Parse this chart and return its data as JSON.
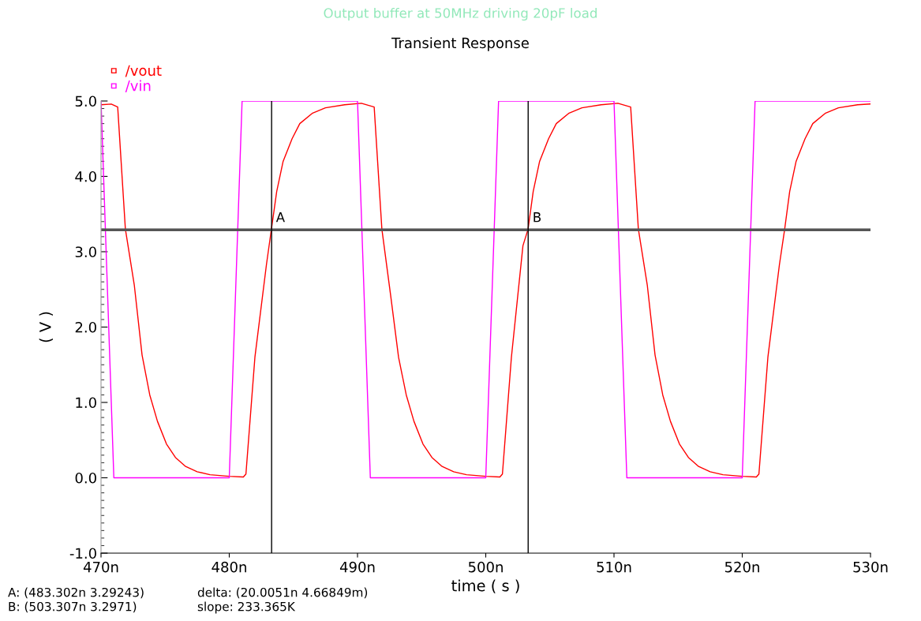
{
  "chart_data": {
    "type": "line",
    "title": "Output buffer at 50MHz driving 20pF load",
    "subtitle": "Transient Response",
    "xlabel": "time ( s )",
    "ylabel": "( V )",
    "xlim": [
      470,
      530
    ],
    "ylim": [
      -1.0,
      5.0
    ],
    "xticks": [
      {
        "value": 470,
        "label": "470n"
      },
      {
        "value": 480,
        "label": "480n"
      },
      {
        "value": 490,
        "label": "490n"
      },
      {
        "value": 500,
        "label": "500n"
      },
      {
        "value": 510,
        "label": "510n"
      },
      {
        "value": 520,
        "label": "520n"
      },
      {
        "value": 530,
        "label": "530n"
      }
    ],
    "yticks": [
      {
        "value": -1.0,
        "label": "-1.0"
      },
      {
        "value": 0.0,
        "label": "0.0"
      },
      {
        "value": 1.0,
        "label": "1.0"
      },
      {
        "value": 2.0,
        "label": "2.0"
      },
      {
        "value": 3.0,
        "label": "3.0"
      },
      {
        "value": 4.0,
        "label": "4.0"
      },
      {
        "value": 5.0,
        "label": "5.0"
      }
    ],
    "series": [
      {
        "name": "/vout",
        "color": "#ff0000",
        "x": [
          470.0,
          470.8,
          471.3,
          471.9,
          472.6,
          473.2,
          473.8,
          474.4,
          475.1,
          475.8,
          476.6,
          477.5,
          478.5,
          480.0,
          481.1,
          481.3,
          482.0,
          482.9,
          483.7,
          484.2,
          484.9,
          485.5,
          486.5,
          487.5,
          489.0,
          490.3,
          491.3,
          491.9,
          492.6,
          493.2,
          493.8,
          494.4,
          495.1,
          495.8,
          496.6,
          497.5,
          498.5,
          500.0,
          501.1,
          501.3,
          502.0,
          502.9,
          503.3,
          503.7,
          504.2,
          504.9,
          505.5,
          506.5,
          507.5,
          509.0,
          510.3,
          511.3,
          511.9,
          512.6,
          513.2,
          513.8,
          514.4,
          515.1,
          515.8,
          516.6,
          517.5,
          518.5,
          520.0,
          521.1,
          521.3,
          522.0,
          522.9,
          523.3,
          523.7,
          524.2,
          524.9,
          525.5,
          526.5,
          527.5,
          529.0,
          530.0
        ],
        "values": [
          4.95,
          4.96,
          4.92,
          3.3,
          2.55,
          1.63,
          1.1,
          0.75,
          0.45,
          0.27,
          0.15,
          0.08,
          0.04,
          0.02,
          0.01,
          0.05,
          1.6,
          2.83,
          3.8,
          4.2,
          4.5,
          4.7,
          4.84,
          4.91,
          4.95,
          4.97,
          4.92,
          3.3,
          2.4,
          1.6,
          1.1,
          0.75,
          0.45,
          0.27,
          0.15,
          0.08,
          0.04,
          0.02,
          0.01,
          0.05,
          1.6,
          3.08,
          3.3,
          3.8,
          4.2,
          4.5,
          4.7,
          4.84,
          4.91,
          4.95,
          4.97,
          4.92,
          3.3,
          2.55,
          1.63,
          1.1,
          0.75,
          0.45,
          0.27,
          0.15,
          0.08,
          0.04,
          0.02,
          0.01,
          0.05,
          1.6,
          2.83,
          3.29,
          3.8,
          4.2,
          4.5,
          4.7,
          4.84,
          4.91,
          4.95,
          4.96
        ]
      },
      {
        "name": "/vin",
        "color": "#ff00ff",
        "x": [
          470,
          471,
          480,
          481,
          490,
          491,
          500,
          501,
          510,
          511,
          520,
          521,
          530
        ],
        "values": [
          5,
          0,
          0,
          5,
          5,
          0,
          0,
          5,
          5,
          0,
          0,
          5,
          5
        ]
      }
    ],
    "ref_lines": [
      {
        "axis": "y",
        "value": 3.29,
        "color": "#555555"
      },
      {
        "axis": "x",
        "value": 483.302,
        "label": "A",
        "color": "#000000"
      },
      {
        "axis": "x",
        "value": 503.307,
        "label": "B",
        "color": "#000000"
      }
    ],
    "annotations": [
      "A: (483.302n 3.29243)",
      "B: (503.307n 3.2971)",
      "delta: (20.0051n 4.66849m)",
      "slope: 233.365K"
    ],
    "legend": "top left",
    "grid": false,
    "marker": "none",
    "line_style": "solid"
  }
}
